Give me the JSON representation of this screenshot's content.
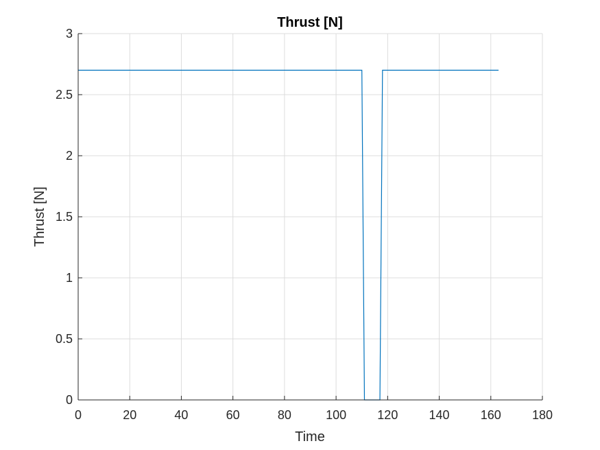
{
  "chart_data": {
    "type": "line",
    "title": "Thrust [N]",
    "xlabel": "Time",
    "ylabel": "Thrust [N]",
    "xlim": [
      0,
      180
    ],
    "ylim": [
      0,
      3
    ],
    "xticks": [
      0,
      20,
      40,
      60,
      80,
      100,
      120,
      140,
      160,
      180
    ],
    "yticks": [
      0,
      0.5,
      1,
      1.5,
      2,
      2.5,
      3
    ],
    "xtick_labels": [
      "0",
      "20",
      "40",
      "60",
      "80",
      "100",
      "120",
      "140",
      "160",
      "180"
    ],
    "ytick_labels": [
      "0",
      "0.5",
      "1",
      "1.5",
      "2",
      "2.5",
      "3"
    ],
    "grid": true,
    "series": [
      {
        "color": "#0072BD",
        "x": [
          0,
          110,
          111,
          117,
          118,
          163
        ],
        "y": [
          2.7,
          2.7,
          0,
          0,
          2.7,
          2.7
        ]
      }
    ]
  }
}
